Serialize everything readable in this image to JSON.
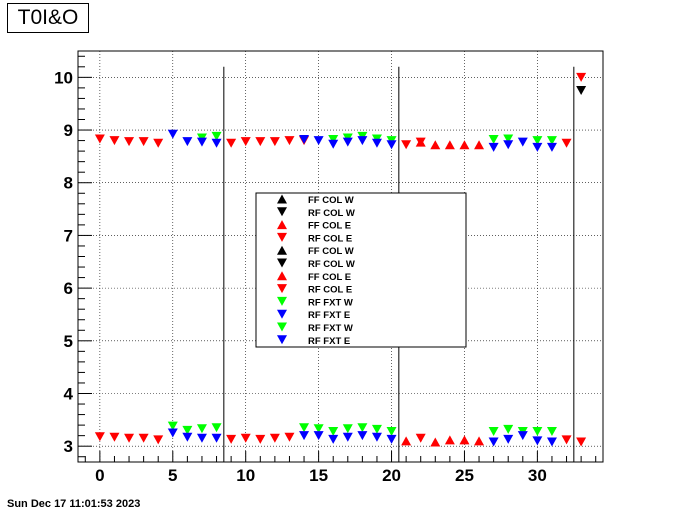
{
  "title": "T0I&O",
  "timestamp": "Sun Dec 17 11:01:53 2023",
  "chart_data": {
    "type": "scatter",
    "title": "T0I&O",
    "xlabel": "",
    "ylabel": "",
    "xlim": [
      -1.5,
      34.5
    ],
    "ylim": [
      2.7,
      10.5
    ],
    "xticks": [
      0,
      5,
      10,
      15,
      20,
      25,
      30
    ],
    "yticks": [
      3,
      4,
      5,
      6,
      7,
      8,
      9,
      10
    ],
    "grid": true,
    "legend_placement": "center",
    "vertical_lines": [
      8.5,
      20.5,
      32.5
    ],
    "series": [
      {
        "name": "FF COL W",
        "marker": "up",
        "color": "#000000",
        "points": []
      },
      {
        "name": "RF COL W",
        "marker": "down",
        "color": "#000000",
        "points": [
          [
            33,
            9.75
          ]
        ]
      },
      {
        "name": "FF COL E",
        "marker": "up",
        "color": "#ff0000",
        "points": [
          [
            21,
            3.1
          ],
          [
            23,
            3.08
          ],
          [
            24,
            3.12
          ],
          [
            25,
            3.12
          ],
          [
            26,
            3.1
          ],
          [
            22,
            8.77
          ],
          [
            23,
            8.72
          ],
          [
            24,
            8.72
          ],
          [
            25,
            8.72
          ],
          [
            26,
            8.72
          ]
        ]
      },
      {
        "name": "RF COL E",
        "marker": "down",
        "color": "#ff0000",
        "points": [
          [
            0,
            3.18
          ],
          [
            1,
            3.17
          ],
          [
            2,
            3.15
          ],
          [
            3,
            3.15
          ],
          [
            4,
            3.12
          ],
          [
            9,
            3.13
          ],
          [
            10,
            3.15
          ],
          [
            11,
            3.13
          ],
          [
            12,
            3.15
          ],
          [
            13,
            3.17
          ],
          [
            22,
            3.15
          ],
          [
            32,
            3.12
          ],
          [
            33,
            3.08
          ],
          [
            0,
            8.83
          ],
          [
            1,
            8.8
          ],
          [
            2,
            8.78
          ],
          [
            3,
            8.78
          ],
          [
            4,
            8.75
          ],
          [
            9,
            8.75
          ],
          [
            10,
            8.78
          ],
          [
            11,
            8.78
          ],
          [
            12,
            8.78
          ],
          [
            13,
            8.8
          ],
          [
            14,
            8.8
          ],
          [
            21,
            8.72
          ],
          [
            22,
            8.77
          ],
          [
            32,
            8.75
          ],
          [
            33,
            10.0
          ]
        ]
      },
      {
        "name": "FF COL W",
        "marker": "up",
        "color": "#000000",
        "points": []
      },
      {
        "name": "RF COL W",
        "marker": "down",
        "color": "#000000",
        "points": []
      },
      {
        "name": "FF COL E",
        "marker": "up",
        "color": "#ff0000",
        "points": []
      },
      {
        "name": "RF COL E",
        "marker": "down",
        "color": "#ff0000",
        "points": []
      },
      {
        "name": "RF FXT W",
        "marker": "down",
        "color": "#00ff00",
        "points": [
          [
            5,
            3.38
          ],
          [
            6,
            3.3
          ],
          [
            7,
            3.33
          ],
          [
            8,
            3.35
          ],
          [
            14,
            3.35
          ],
          [
            15,
            3.33
          ],
          [
            16,
            3.28
          ],
          [
            17,
            3.33
          ],
          [
            18,
            3.35
          ],
          [
            19,
            3.32
          ],
          [
            20,
            3.28
          ],
          [
            27,
            3.28
          ],
          [
            28,
            3.32
          ],
          [
            29,
            3.28
          ],
          [
            30,
            3.28
          ],
          [
            31,
            3.28
          ],
          [
            7,
            8.85
          ],
          [
            8,
            8.88
          ],
          [
            16,
            8.82
          ],
          [
            17,
            8.85
          ],
          [
            18,
            8.88
          ],
          [
            19,
            8.83
          ],
          [
            20,
            8.8
          ],
          [
            27,
            8.82
          ],
          [
            28,
            8.83
          ],
          [
            30,
            8.8
          ],
          [
            31,
            8.8
          ]
        ]
      },
      {
        "name": "RF FXT E",
        "marker": "down",
        "color": "#0000ff",
        "points": [
          [
            5,
            3.25
          ],
          [
            6,
            3.17
          ],
          [
            7,
            3.15
          ],
          [
            8,
            3.15
          ],
          [
            14,
            3.2
          ],
          [
            15,
            3.2
          ],
          [
            16,
            3.13
          ],
          [
            17,
            3.17
          ],
          [
            18,
            3.2
          ],
          [
            19,
            3.17
          ],
          [
            20,
            3.13
          ],
          [
            27,
            3.08
          ],
          [
            28,
            3.13
          ],
          [
            29,
            3.2
          ],
          [
            30,
            3.1
          ],
          [
            31,
            3.08
          ],
          [
            5,
            8.92
          ],
          [
            6,
            8.78
          ],
          [
            7,
            8.77
          ],
          [
            8,
            8.75
          ],
          [
            14,
            8.82
          ],
          [
            15,
            8.8
          ],
          [
            16,
            8.73
          ],
          [
            17,
            8.77
          ],
          [
            18,
            8.8
          ],
          [
            19,
            8.75
          ],
          [
            20,
            8.72
          ],
          [
            27,
            8.67
          ],
          [
            28,
            8.72
          ],
          [
            29,
            8.77
          ],
          [
            30,
            8.67
          ],
          [
            31,
            8.67
          ]
        ]
      },
      {
        "name": "RF FXT W",
        "marker": "down",
        "color": "#00ff00",
        "points": []
      },
      {
        "name": "RF FXT E",
        "marker": "down",
        "color": "#0000ff",
        "points": []
      }
    ]
  }
}
